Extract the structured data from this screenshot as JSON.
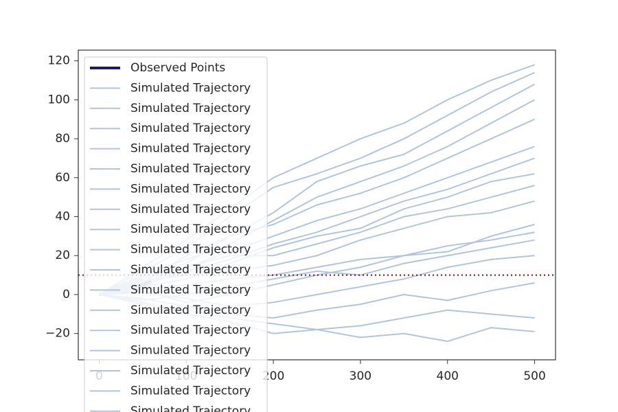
{
  "chart_data": {
    "type": "line",
    "x": [
      0,
      50,
      100,
      150,
      200,
      250,
      300,
      350,
      400,
      450,
      500
    ],
    "series": [
      {
        "name": "Observed Points",
        "color": "#191970",
        "x": [
          0,
          10,
          20,
          30,
          40,
          50,
          60
        ],
        "values": [
          0,
          1,
          2,
          3,
          4,
          5,
          6.5
        ]
      },
      {
        "name": "Simulated Trajectory",
        "color": "#b0c4de",
        "values": [
          0,
          8,
          14,
          22,
          30,
          38,
          44,
          52,
          60,
          68,
          76
        ]
      },
      {
        "name": "Simulated Trajectory",
        "color": "#b0c4de",
        "values": [
          0,
          3,
          5,
          8,
          10,
          14,
          18,
          20,
          25,
          28,
          32
        ]
      },
      {
        "name": "Simulated Trajectory",
        "color": "#b0c4de",
        "values": [
          0,
          12,
          24,
          40,
          55,
          62,
          70,
          80,
          92,
          104,
          114
        ]
      },
      {
        "name": "Simulated Trajectory",
        "color": "#b0c4de",
        "values": [
          0,
          -5,
          -8,
          -12,
          -15,
          -18,
          -22,
          -20,
          -24,
          -17,
          -19
        ]
      },
      {
        "name": "Simulated Trajectory",
        "color": "#b0c4de",
        "values": [
          0,
          6,
          20,
          30,
          42,
          58,
          66,
          72,
          84,
          96,
          108
        ]
      },
      {
        "name": "Simulated Trajectory",
        "color": "#b0c4de",
        "values": [
          0,
          2,
          -4,
          0,
          5,
          10,
          14,
          20,
          22,
          30,
          36
        ]
      },
      {
        "name": "Simulated Trajectory",
        "color": "#b0c4de",
        "values": [
          0,
          10,
          18,
          26,
          38,
          50,
          58,
          66,
          76,
          88,
          100
        ]
      },
      {
        "name": "Simulated Trajectory",
        "color": "#b0c4de",
        "values": [
          0,
          -2,
          -6,
          -10,
          -12,
          -8,
          -5,
          0,
          -3,
          2,
          6
        ]
      },
      {
        "name": "Simulated Trajectory",
        "color": "#b0c4de",
        "values": [
          0,
          5,
          12,
          18,
          26,
          32,
          40,
          48,
          54,
          62,
          70
        ]
      },
      {
        "name": "Simulated Trajectory",
        "color": "#b0c4de",
        "values": [
          0,
          4,
          8,
          16,
          24,
          30,
          34,
          44,
          50,
          58,
          62
        ]
      },
      {
        "name": "Simulated Trajectory",
        "color": "#b0c4de",
        "values": [
          0,
          -4,
          -10,
          -14,
          -20,
          -18,
          -16,
          -12,
          -8,
          -10,
          -12
        ]
      },
      {
        "name": "Simulated Trajectory",
        "color": "#b0c4de",
        "values": [
          0,
          14,
          28,
          44,
          60,
          70,
          80,
          88,
          100,
          110,
          118
        ]
      },
      {
        "name": "Simulated Trajectory",
        "color": "#b0c4de",
        "values": [
          0,
          7,
          10,
          12,
          15,
          20,
          28,
          34,
          40,
          42,
          48
        ]
      },
      {
        "name": "Simulated Trajectory",
        "color": "#b0c4de",
        "values": [
          0,
          -3,
          0,
          4,
          8,
          12,
          10,
          16,
          20,
          24,
          28
        ]
      },
      {
        "name": "Simulated Trajectory",
        "color": "#b0c4de",
        "values": [
          0,
          9,
          16,
          30,
          36,
          46,
          52,
          60,
          70,
          80,
          90
        ]
      },
      {
        "name": "Simulated Trajectory",
        "color": "#b0c4de",
        "values": [
          0,
          1,
          -2,
          -6,
          -4,
          0,
          4,
          8,
          14,
          18,
          20
        ]
      },
      {
        "name": "Simulated Trajectory",
        "color": "#b0c4de",
        "values": [
          0,
          6,
          14,
          20,
          20,
          26,
          32,
          40,
          44,
          50,
          56
        ]
      }
    ],
    "hline": {
      "value": 10,
      "color": "#8b0000",
      "style": "dotted"
    },
    "xlim": [
      -24,
      524
    ],
    "ylim": [
      -33.5,
      125.5
    ],
    "xticks": [
      0,
      100,
      200,
      300,
      400,
      500
    ],
    "yticks": [
      {
        "value": -20,
        "label": "−20"
      },
      0,
      20,
      40,
      60,
      80,
      100,
      120
    ],
    "legend": "upper left"
  }
}
